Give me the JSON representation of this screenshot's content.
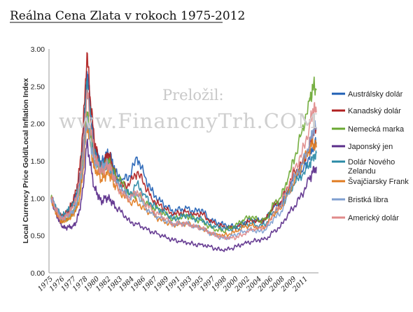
{
  "chart_data": {
    "type": "line",
    "title": "Reálna Cena Zlata v rokoch 1975-2012",
    "ylabel": "Local Currency Price Gold/Local Inflation Index",
    "xlabel": "",
    "ylim": [
      0,
      3.0
    ],
    "yticks": [
      "3.00",
      "2.50",
      "2.00",
      "1.50",
      "1.00",
      "0.50",
      "0.00"
    ],
    "xticks": [
      "1975",
      "1976",
      "1977",
      "1978",
      "1980",
      "1982",
      "1983",
      "1984",
      "1986",
      "1987",
      "1989",
      "1991",
      "1993",
      "1995",
      "1997",
      "1998",
      "2000",
      "2002",
      "2004",
      "2006",
      "2008",
      "2009",
      "2011"
    ],
    "grid": false,
    "legend_position": "right",
    "x": [
      1975.0,
      1975.5,
      1976.0,
      1976.5,
      1977.0,
      1977.5,
      1978.0,
      1978.5,
      1979.0,
      1979.5,
      1980.0,
      1980.5,
      1981.0,
      1981.5,
      1982.0,
      1982.5,
      1983.0,
      1983.5,
      1984.0,
      1985.0,
      1986.0,
      1987.0,
      1988.0,
      1989.0,
      1990.0,
      1991.0,
      1992.0,
      1993.0,
      1994.0,
      1995.0,
      1996.0,
      1997.0,
      1998.0,
      1999.0,
      2000.0,
      2001.0,
      2002.0,
      2003.0,
      2004.0,
      2005.0,
      2006.0,
      2007.0,
      2008.0,
      2009.0,
      2010.0,
      2011.0,
      2011.5,
      2012.0
    ],
    "series": [
      {
        "name": "Austrálsky dolár",
        "color": "#1f5fb4",
        "values": [
          1.0,
          0.9,
          0.8,
          0.72,
          0.78,
          0.82,
          0.92,
          1.05,
          1.3,
          1.8,
          2.7,
          2.2,
          1.7,
          1.6,
          1.45,
          1.55,
          1.6,
          1.5,
          1.35,
          1.25,
          1.3,
          1.55,
          1.3,
          1.1,
          0.98,
          0.9,
          0.82,
          0.85,
          0.86,
          0.82,
          0.85,
          0.72,
          0.68,
          0.65,
          0.62,
          0.63,
          0.68,
          0.72,
          0.7,
          0.72,
          0.88,
          0.92,
          1.1,
          1.3,
          1.35,
          1.55,
          1.65,
          1.75
        ]
      },
      {
        "name": "Kanadský dolár",
        "color": "#b02020",
        "values": [
          1.0,
          0.9,
          0.8,
          0.75,
          0.8,
          0.85,
          0.95,
          1.1,
          1.4,
          2.0,
          2.95,
          2.3,
          1.8,
          1.55,
          1.4,
          1.5,
          1.6,
          1.45,
          1.3,
          1.15,
          1.2,
          1.35,
          1.2,
          1.0,
          0.92,
          0.85,
          0.78,
          0.8,
          0.82,
          0.78,
          0.8,
          0.7,
          0.65,
          0.62,
          0.6,
          0.62,
          0.66,
          0.7,
          0.68,
          0.72,
          0.9,
          0.95,
          1.15,
          1.35,
          1.45,
          1.7,
          1.85,
          1.95
        ]
      },
      {
        "name": "Nemecká marka",
        "color": "#6aa832",
        "values": [
          1.0,
          0.88,
          0.78,
          0.7,
          0.72,
          0.74,
          0.8,
          0.88,
          1.1,
          1.55,
          2.15,
          1.85,
          1.5,
          1.45,
          1.35,
          1.45,
          1.5,
          1.4,
          1.3,
          1.2,
          1.05,
          1.05,
          0.95,
          0.88,
          0.85,
          0.78,
          0.72,
          0.75,
          0.76,
          0.72,
          0.7,
          0.62,
          0.58,
          0.56,
          0.6,
          0.65,
          0.72,
          0.75,
          0.7,
          0.72,
          0.92,
          1.0,
          1.25,
          1.55,
          1.9,
          2.3,
          2.5,
          2.45
        ]
      },
      {
        "name": "Japonský jen",
        "color": "#5a2d8a",
        "values": [
          1.0,
          0.85,
          0.72,
          0.62,
          0.6,
          0.62,
          0.62,
          0.68,
          0.85,
          1.15,
          1.75,
          1.45,
          1.15,
          1.05,
          0.95,
          1.0,
          1.0,
          0.95,
          0.88,
          0.8,
          0.68,
          0.65,
          0.6,
          0.55,
          0.52,
          0.48,
          0.44,
          0.42,
          0.4,
          0.38,
          0.38,
          0.36,
          0.32,
          0.3,
          0.32,
          0.36,
          0.4,
          0.42,
          0.44,
          0.45,
          0.55,
          0.62,
          0.78,
          0.9,
          1.05,
          1.25,
          1.35,
          1.42
        ]
      },
      {
        "name": "Dolár Nového Zelandu",
        "color": "#2a8aa6",
        "values": [
          1.0,
          0.9,
          0.82,
          0.75,
          0.8,
          0.85,
          0.9,
          1.0,
          1.25,
          1.7,
          2.6,
          2.05,
          1.6,
          1.5,
          1.4,
          1.45,
          1.45,
          1.35,
          1.25,
          1.1,
          1.05,
          1.2,
          1.05,
          0.92,
          0.85,
          0.8,
          0.72,
          0.75,
          0.78,
          0.72,
          0.72,
          0.64,
          0.62,
          0.6,
          0.58,
          0.6,
          0.64,
          0.66,
          0.62,
          0.66,
          0.82,
          0.88,
          1.05,
          1.2,
          1.3,
          1.45,
          1.55,
          1.6
        ]
      },
      {
        "name": "Švajčiarsky Frank",
        "color": "#e07b20",
        "values": [
          1.0,
          0.85,
          0.75,
          0.68,
          0.7,
          0.72,
          0.78,
          0.85,
          1.0,
          1.4,
          2.0,
          1.7,
          1.4,
          1.35,
          1.25,
          1.3,
          1.35,
          1.25,
          1.15,
          1.05,
          0.95,
          0.95,
          0.85,
          0.8,
          0.72,
          0.68,
          0.64,
          0.66,
          0.66,
          0.62,
          0.6,
          0.54,
          0.52,
          0.5,
          0.52,
          0.56,
          0.62,
          0.64,
          0.6,
          0.62,
          0.78,
          0.85,
          1.05,
          1.25,
          1.45,
          1.65,
          1.75,
          1.68
        ]
      },
      {
        "name": "Bristká libra",
        "color": "#7f9fd0",
        "values": [
          1.0,
          0.9,
          0.8,
          0.72,
          0.75,
          0.78,
          0.82,
          0.9,
          1.15,
          1.5,
          2.1,
          1.75,
          1.5,
          1.45,
          1.4,
          1.45,
          1.45,
          1.35,
          1.25,
          1.1,
          1.0,
          1.05,
          0.9,
          0.8,
          0.75,
          0.7,
          0.65,
          0.66,
          0.66,
          0.62,
          0.6,
          0.54,
          0.5,
          0.46,
          0.48,
          0.52,
          0.56,
          0.58,
          0.55,
          0.58,
          0.72,
          0.8,
          1.05,
          1.3,
          1.45,
          1.7,
          1.9,
          1.95
        ]
      },
      {
        "name": "Americký dolár",
        "color": "#e08a8a",
        "values": [
          1.0,
          0.88,
          0.78,
          0.72,
          0.76,
          0.8,
          0.88,
          0.98,
          1.25,
          1.7,
          2.45,
          2.0,
          1.6,
          1.45,
          1.35,
          1.4,
          1.45,
          1.35,
          1.2,
          1.05,
          1.0,
          1.1,
          0.95,
          0.85,
          0.78,
          0.72,
          0.65,
          0.66,
          0.66,
          0.62,
          0.6,
          0.54,
          0.5,
          0.48,
          0.47,
          0.48,
          0.52,
          0.58,
          0.6,
          0.62,
          0.8,
          0.9,
          1.15,
          1.4,
          1.6,
          1.95,
          2.2,
          2.15
        ]
      }
    ]
  },
  "watermark": {
    "line1": "Preložil:",
    "line2": "www.FinancnyTrh.COM"
  }
}
